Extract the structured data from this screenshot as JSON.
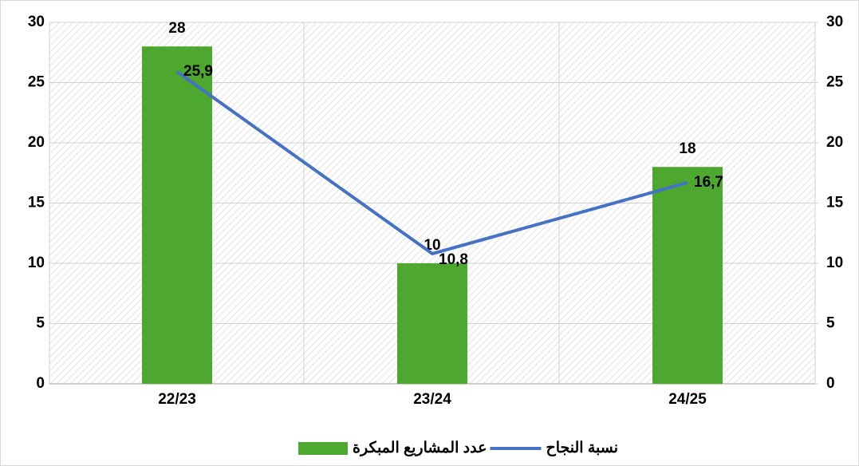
{
  "chart_data": {
    "type": "bar",
    "categories": [
      "22/23",
      "23/24",
      "24/25"
    ],
    "series": [
      {
        "name": "عدد المشاريع المبكرة",
        "type": "bar",
        "color": "#4ea72e",
        "values": [
          28,
          10,
          18
        ]
      },
      {
        "name": "نسبة النجاح",
        "type": "line",
        "axis": "y2",
        "color": "#4472c4",
        "values": [
          25.9,
          10.8,
          16.7
        ],
        "value_labels": [
          "25,9",
          "10,8",
          "16,7"
        ]
      }
    ],
    "ylim": [
      0,
      30
    ],
    "yticks": [
      0,
      5,
      10,
      15,
      20,
      25,
      30
    ],
    "y2lim": [
      0,
      30
    ],
    "y2ticks": [
      0,
      5,
      10,
      15,
      20,
      25,
      30
    ],
    "grid": true,
    "legend": "bottom"
  }
}
